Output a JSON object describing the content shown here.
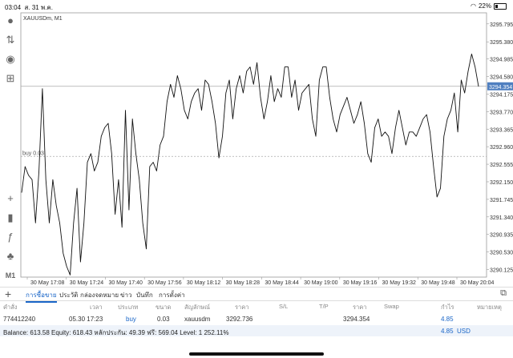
{
  "status_bar": {
    "time": "03:04",
    "date": "ส. 31 พ.ค.",
    "battery": "22%"
  },
  "chart": {
    "symbol": "XAUUSDm, M1",
    "price_labels": [
      "3295.795",
      "3295.380",
      "3294.985",
      "3294.580",
      "3294.175",
      "3293.770",
      "3293.365",
      "3292.960",
      "3292.555",
      "3292.150",
      "3291.745",
      "3291.340",
      "3290.935",
      "3290.530",
      "3290.125"
    ],
    "current_price": "3294.354",
    "buy_label": "buy 0.03",
    "time_labels": [
      "30 May 17:08",
      "30 May 17:24",
      "30 May 17:40",
      "30 May 17:56",
      "30 May 18:12",
      "30 May 18:28",
      "30 May 18:44",
      "30 May 19:00",
      "30 May 19:16",
      "30 May 19:32",
      "30 May 19:48",
      "30 May 20:04"
    ]
  },
  "chart_data": {
    "type": "line",
    "title": "XAUUSDm, M1",
    "xlabel": "",
    "ylabel": "",
    "x_ticks": [
      "30 May 17:08",
      "30 May 17:24",
      "30 May 17:40",
      "30 May 17:56",
      "30 May 18:12",
      "30 May 18:28",
      "30 May 18:44",
      "30 May 19:00",
      "30 May 19:16",
      "30 May 19:32",
      "30 May 19:48",
      "30 May 20:04"
    ],
    "ylim": [
      3289.95,
      3296.05
    ],
    "current_price": 3294.354,
    "buy_price": 3292.736,
    "series": [
      {
        "values": [
          3291.9,
          3292.5,
          3292.3,
          3292.2,
          3291.2,
          3292.4,
          3294.3,
          3292.2,
          3291.2,
          3292.2,
          3291.6,
          3291.2,
          3290.5,
          3290.2,
          3290.0,
          3291.2,
          3292.0,
          3290.3,
          3291.2,
          3292.6,
          3292.8,
          3292.4,
          3292.6,
          3293.2,
          3293.4,
          3293.5,
          3292.8,
          3291.4,
          3292.2,
          3291.1,
          3293.8,
          3291.5,
          3293.6,
          3292.8,
          3292.2,
          3291.2,
          3290.6,
          3292.5,
          3292.6,
          3292.4,
          3293.0,
          3293.2,
          3294.0,
          3294.4,
          3294.1,
          3294.6,
          3294.3,
          3293.8,
          3293.6,
          3294.0,
          3294.2,
          3294.3,
          3293.8,
          3294.5,
          3294.4,
          3294.0,
          3293.5,
          3292.7,
          3293.2,
          3294.2,
          3294.5,
          3293.6,
          3294.3,
          3294.6,
          3294.2,
          3294.7,
          3294.8,
          3294.4,
          3294.9,
          3294.1,
          3293.6,
          3294.0,
          3294.6,
          3294.0,
          3294.3,
          3294.1,
          3294.8,
          3294.8,
          3294.1,
          3294.5,
          3293.8,
          3294.2,
          3294.3,
          3294.4,
          3293.6,
          3293.2,
          3294.5,
          3294.8,
          3294.8,
          3294.1,
          3293.6,
          3293.3,
          3293.7,
          3293.9,
          3294.1,
          3293.8,
          3293.5,
          3293.7,
          3294.0,
          3293.5,
          3292.8,
          3292.6,
          3293.4,
          3293.6,
          3293.2,
          3293.3,
          3293.2,
          3292.8,
          3293.4,
          3293.8,
          3293.4,
          3293.0,
          3293.3,
          3293.3,
          3293.2,
          3293.4,
          3293.6,
          3293.7,
          3293.3,
          3292.5,
          3291.8,
          3292.0,
          3293.2,
          3293.6,
          3293.8,
          3294.2,
          3293.3,
          3294.5,
          3294.2,
          3294.7,
          3295.1,
          3294.8,
          3294.35
        ]
      }
    ]
  },
  "toolbar": {
    "tf_label": "M1"
  },
  "tabs": [
    "การซื้อขาย",
    "ประวัติ",
    "กล่องจดหมาย",
    "ข่าว",
    "บันทึก",
    "การตั้งค่า"
  ],
  "table": {
    "headers": [
      "คำสั่ง",
      "เวลา",
      "ประเภท",
      "ขนาด",
      "สัญลักษณ์",
      "ราคา",
      "S/L",
      "T/P",
      "ราคา",
      "Swap",
      "กำไร",
      "หมายเหตุ"
    ],
    "row": [
      "774412240",
      "05.30 17:23",
      "buy",
      "0.03",
      "xauusdm",
      "3292.736",
      "",
      "",
      "3294.354",
      "",
      "4.85",
      ""
    ]
  },
  "balance": {
    "text": "Balance: 613.58 Equity: 618.43 หลักประกัน: 49.39 ฟรี: 569.04 Level: 1 252.11%",
    "profit": "4.85",
    "currency": "USD"
  }
}
